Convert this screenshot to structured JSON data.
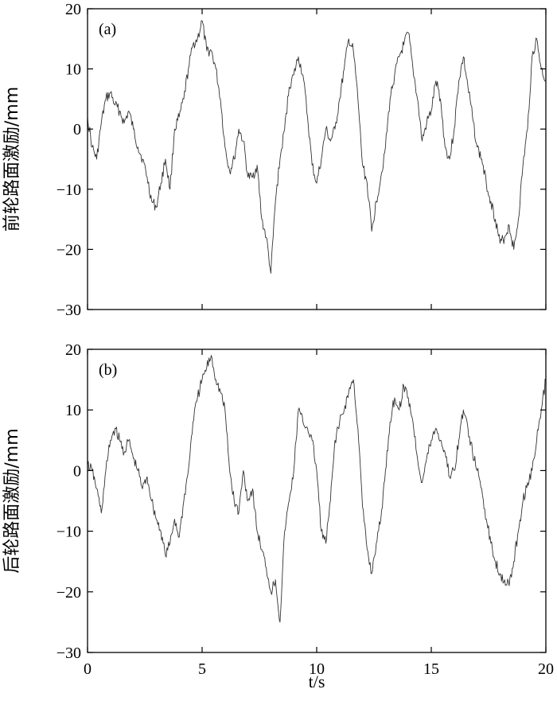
{
  "chart_data": [
    {
      "type": "line",
      "panel_label": "(a)",
      "ylabel": "前轮路面激励/mm",
      "xlabel": "",
      "xlim": [
        0,
        20
      ],
      "ylim": [
        -30,
        20
      ],
      "x_ticks": [
        0,
        5,
        10,
        15,
        20
      ],
      "y_ticks": [
        20,
        10,
        0,
        -10,
        -20,
        -30
      ],
      "y_tick_labels": [
        "20",
        "10",
        "0",
        "−10",
        "−20",
        "−30"
      ],
      "series": [
        {
          "x": [
            0,
            0.2,
            0.4,
            0.6,
            0.8,
            1.0,
            1.2,
            1.4,
            1.6,
            1.8,
            2.0,
            2.2,
            2.4,
            2.6,
            2.8,
            3.0,
            3.2,
            3.4,
            3.6,
            3.8,
            4.0,
            4.2,
            4.4,
            4.6,
            4.8,
            5.0,
            5.2,
            5.4,
            5.6,
            5.8,
            6.0,
            6.2,
            6.4,
            6.6,
            6.8,
            7.0,
            7.2,
            7.4,
            7.6,
            7.8,
            8.0,
            8.2,
            8.4,
            8.6,
            8.8,
            9.0,
            9.2,
            9.4,
            9.6,
            9.8,
            10.0,
            10.2,
            10.4,
            10.6,
            10.8,
            11.0,
            11.2,
            11.4,
            11.6,
            11.8,
            12.0,
            12.2,
            12.4,
            12.6,
            12.8,
            13.0,
            13.2,
            13.4,
            13.6,
            13.8,
            14.0,
            14.2,
            14.4,
            14.6,
            14.8,
            15.0,
            15.2,
            15.4,
            15.6,
            15.8,
            16.0,
            16.2,
            16.4,
            16.6,
            16.8,
            17.0,
            17.2,
            17.4,
            17.6,
            17.8,
            18.0,
            18.2,
            18.4,
            18.6,
            18.8,
            19.0,
            19.2,
            19.4,
            19.6,
            19.8,
            20.0
          ],
          "y": [
            2,
            -3,
            -5,
            1,
            5,
            6,
            4,
            3,
            1,
            3,
            0,
            -3,
            -5,
            -8,
            -12,
            -13,
            -9,
            -5,
            -10,
            0,
            2,
            5,
            10,
            14,
            15,
            18,
            13,
            13,
            10,
            5,
            -3,
            -7,
            -5,
            0,
            -2,
            -8,
            -8,
            -6,
            -15,
            -18,
            -24,
            -12,
            -5,
            0,
            7,
            9,
            12,
            9,
            2,
            -6,
            -9,
            -5,
            0,
            -2,
            0,
            5,
            10,
            15,
            13,
            5,
            -6,
            -9,
            -17,
            -12,
            -8,
            -3,
            5,
            9,
            12,
            14,
            16,
            10,
            5,
            -2,
            1,
            3,
            8,
            5,
            -3,
            -5,
            0,
            8,
            12,
            7,
            2,
            -3,
            -5,
            -9,
            -12,
            -15,
            -19,
            -18,
            -16,
            -20,
            -15,
            -6,
            0,
            12,
            15,
            10,
            8
          ]
        }
      ]
    },
    {
      "type": "line",
      "panel_label": "(b)",
      "ylabel": "后轮路面激励/mm",
      "xlabel": "t/s",
      "xlim": [
        0,
        20
      ],
      "ylim": [
        -30,
        20
      ],
      "x_ticks": [
        0,
        5,
        10,
        15,
        20
      ],
      "x_tick_labels": [
        "0",
        "5",
        "10",
        "15",
        "20"
      ],
      "y_ticks": [
        20,
        10,
        0,
        -10,
        -20,
        -30
      ],
      "y_tick_labels": [
        "20",
        "10",
        "0",
        "−10",
        "−20",
        "−30"
      ],
      "series": [
        {
          "x": [
            0,
            0.2,
            0.4,
            0.6,
            0.8,
            1.0,
            1.2,
            1.4,
            1.6,
            1.8,
            2.0,
            2.2,
            2.4,
            2.6,
            2.8,
            3.0,
            3.2,
            3.4,
            3.6,
            3.8,
            4.0,
            4.2,
            4.4,
            4.6,
            4.8,
            5.0,
            5.2,
            5.4,
            5.6,
            5.8,
            6.0,
            6.2,
            6.4,
            6.6,
            6.8,
            7.0,
            7.2,
            7.4,
            7.6,
            7.8,
            8.0,
            8.2,
            8.4,
            8.6,
            8.8,
            9.0,
            9.2,
            9.4,
            9.6,
            9.8,
            10.0,
            10.2,
            10.4,
            10.6,
            10.8,
            11.0,
            11.2,
            11.4,
            11.6,
            11.8,
            12.0,
            12.2,
            12.4,
            12.6,
            12.8,
            13.0,
            13.2,
            13.4,
            13.6,
            13.8,
            14.0,
            14.2,
            14.4,
            14.6,
            14.8,
            15.0,
            15.2,
            15.4,
            15.6,
            15.8,
            16.0,
            16.2,
            16.4,
            16.6,
            16.8,
            17.0,
            17.2,
            17.4,
            17.6,
            17.8,
            18.0,
            18.2,
            18.4,
            18.6,
            18.8,
            19.0,
            19.2,
            19.4,
            19.6,
            19.8,
            20.0
          ],
          "y": [
            1,
            0,
            -3,
            -7,
            0,
            5,
            7,
            5,
            3,
            5,
            2,
            0,
            -3,
            -1,
            -5,
            -8,
            -10,
            -14,
            -12,
            -8,
            -11,
            -5,
            0,
            8,
            12,
            15,
            17,
            19,
            15,
            13,
            10,
            0,
            -5,
            -7,
            0,
            -5,
            -3,
            -10,
            -13,
            -16,
            -20,
            -18,
            -25,
            -10,
            -5,
            0,
            10,
            8,
            7,
            5,
            0,
            -10,
            -12,
            -5,
            5,
            8,
            10,
            13,
            15,
            7,
            -6,
            -13,
            -17,
            -12,
            -8,
            0,
            8,
            12,
            10,
            14,
            12,
            8,
            2,
            -2,
            2,
            5,
            7,
            5,
            3,
            -1,
            0,
            5,
            10,
            7,
            3,
            0,
            -3,
            -8,
            -12,
            -15,
            -17,
            -18,
            -19,
            -15,
            -10,
            -5,
            -2,
            0,
            5,
            10,
            15
          ]
        }
      ]
    }
  ]
}
